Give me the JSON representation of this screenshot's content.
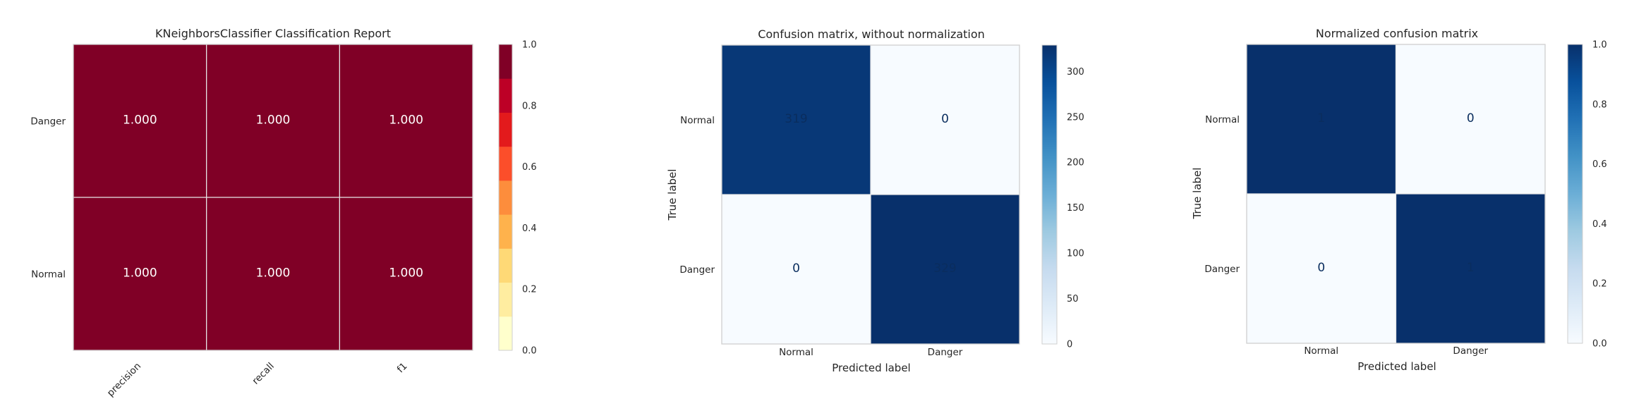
{
  "chart_data": [
    {
      "type": "heatmap",
      "title": "KNeighborsClassifier Classification Report",
      "rows": [
        "Danger",
        "Normal"
      ],
      "columns": [
        "precision",
        "recall",
        "f1"
      ],
      "values": [
        [
          1.0,
          1.0,
          1.0
        ],
        [
          1.0,
          1.0,
          1.0
        ]
      ],
      "value_labels": [
        [
          "1.000",
          "1.000",
          "1.000"
        ],
        [
          "1.000",
          "1.000",
          "1.000"
        ]
      ],
      "colormap": "YlOrRd (discrete)",
      "colorbar": {
        "range": [
          0,
          1
        ],
        "ticks": [
          "0.0",
          "0.2",
          "0.4",
          "0.6",
          "0.8",
          "1.0"
        ],
        "bands": [
          "#ffffcc",
          "#ffeda0",
          "#fed976",
          "#feb24c",
          "#fd8d3c",
          "#fc4e2a",
          "#e31a1c",
          "#bd0026",
          "#800026"
        ]
      },
      "cell_color": "#800026",
      "text_color": "#ffffff"
    },
    {
      "type": "heatmap",
      "title": "Confusion matrix, without normalization",
      "xlabel": "Predicted label",
      "ylabel": "True label",
      "rows": [
        "Normal",
        "Danger"
      ],
      "columns": [
        "Normal",
        "Danger"
      ],
      "values": [
        [
          319,
          0
        ],
        [
          0,
          329
        ]
      ],
      "value_labels": [
        [
          "319",
          "0"
        ],
        [
          "0",
          "329"
        ]
      ],
      "colormap": "Blues",
      "colorbar": {
        "range": [
          0,
          329
        ],
        "ticks": [
          "0",
          "50",
          "100",
          "150",
          "200",
          "250",
          "300"
        ]
      },
      "text_color": "#0a2d5e"
    },
    {
      "type": "heatmap",
      "title": "Normalized confusion matrix",
      "xlabel": "Predicted label",
      "ylabel": "True label",
      "rows": [
        "Normal",
        "Danger"
      ],
      "columns": [
        "Normal",
        "Danger"
      ],
      "values": [
        [
          1,
          0
        ],
        [
          0,
          1
        ]
      ],
      "value_labels": [
        [
          "1",
          "0"
        ],
        [
          "0",
          "1"
        ]
      ],
      "colormap": "Blues",
      "colorbar": {
        "range": [
          0,
          1
        ],
        "ticks": [
          "0.0",
          "0.2",
          "0.4",
          "0.6",
          "0.8",
          "1.0"
        ]
      },
      "text_color": "#0a2d5e"
    }
  ]
}
